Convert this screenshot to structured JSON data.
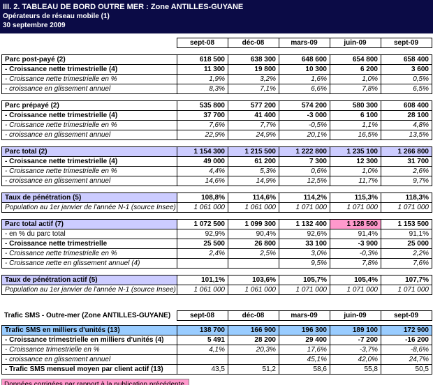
{
  "title": {
    "line1": "III. 2. TABLEAU DE BORD OUTRE MER : Zone ANTILLES-GUYANE",
    "line2": "Opérateurs de réseau mobile (1)",
    "line3": "30 septembre 2009"
  },
  "columns": [
    "sept-08",
    "déc-08",
    "mars-09",
    "juin-09",
    "sept-09"
  ],
  "sms_header_label": "Trafic SMS - Outre-mer (Zone ANTILLES-GUYANE)",
  "footer_note": "Données corrigées par rapport à la publication précédente",
  "colors": {
    "header_bg": "#0b0b46",
    "header_text": "#ffffff",
    "lavender": "#ccccff",
    "blue": "#99ccff",
    "pink": "#ff99cc",
    "border": "#000000"
  },
  "sections": [
    {
      "id": "parc-post-paye",
      "rows": [
        {
          "label": "Parc post-payé (2)",
          "style": "bold",
          "values": [
            "618 500",
            "638 300",
            "648 600",
            "654 800",
            "658 400"
          ]
        },
        {
          "label": "- Croissance nette trimestrielle (4)",
          "style": "bold",
          "values": [
            "11 300",
            "19 800",
            "10 300",
            "6 200",
            "3 600"
          ]
        },
        {
          "label": "- Croissance nette trimestrielle en %",
          "style": "italic",
          "values": [
            "1,9%",
            "3,2%",
            "1,6%",
            "1,0%",
            "0,5%"
          ]
        },
        {
          "label": "- croissance en glissement annuel",
          "style": "italic",
          "values": [
            "8,3%",
            "7,1%",
            "6,6%",
            "7,8%",
            "6,5%"
          ]
        }
      ]
    },
    {
      "id": "parc-prepaye",
      "rows": [
        {
          "label": "Parc prépayé (2)",
          "style": "bold",
          "values": [
            "535 800",
            "577 200",
            "574 200",
            "580 300",
            "608 400"
          ]
        },
        {
          "label": "- Croissance nette trimestrielle (4)",
          "style": "bold",
          "values": [
            "37 700",
            "41 400",
            "-3 000",
            "6 100",
            "28 100"
          ]
        },
        {
          "label": "- Croissance nette trimestrielle en %",
          "style": "italic",
          "values": [
            "7,6%",
            "7,7%",
            "-0,5%",
            "1,1%",
            "4,8%"
          ]
        },
        {
          "label": "- croissance en glissement annuel",
          "style": "italic",
          "values": [
            "22,9%",
            "24,9%",
            "20,1%",
            "16,5%",
            "13,5%"
          ]
        }
      ]
    },
    {
      "id": "parc-total",
      "rows": [
        {
          "label": "Parc total (2)",
          "style": "bold",
          "row_bg": "lavender",
          "values": [
            "1 154 300",
            "1 215 500",
            "1 222 800",
            "1 235 100",
            "1 266 800"
          ]
        },
        {
          "label": "- Croissance nette trimestrielle (4)",
          "style": "bold",
          "values": [
            "49 000",
            "61 200",
            "7 300",
            "12 300",
            "31 700"
          ]
        },
        {
          "label": "- Croissance nette trimestrielle en %",
          "style": "italic",
          "values": [
            "4,4%",
            "5,3%",
            "0,6%",
            "1,0%",
            "2,6%"
          ]
        },
        {
          "label": "- croissance en glissement annuel",
          "style": "italic",
          "values": [
            "14,6%",
            "14,9%",
            "12,5%",
            "11,7%",
            "9,7%"
          ]
        }
      ]
    },
    {
      "id": "taux-penetration",
      "rows": [
        {
          "label": "Taux de pénétration (5)",
          "style": "bold",
          "label_bg": "lavender",
          "values": [
            "108,8%",
            "114,6%",
            "114,2%",
            "115,3%",
            "118,3%"
          ]
        },
        {
          "label": "Population au 1er janvier de l'année N-1 (source Insee)",
          "style": "italic",
          "values": [
            "1 061 000",
            "1 061 000",
            "1 071 000",
            "1 071 000",
            "1 071 000"
          ]
        }
      ]
    },
    {
      "id": "parc-total-actif",
      "rows": [
        {
          "label": "Parc total actif (7)",
          "style": "bold",
          "label_bg": "lavender",
          "cell_bg": {
            "3": "pink"
          },
          "values": [
            "1 072 500",
            "1 099 300",
            "1 132 400",
            "1 128 500",
            "1 153 500"
          ]
        },
        {
          "label": "- en % du parc total",
          "style": "plain",
          "values": [
            "92,9%",
            "90,4%",
            "92,6%",
            "91,4%",
            "91,1%"
          ]
        },
        {
          "label": "- Croissance nette trimestrielle",
          "style": "bold",
          "values": [
            "25 500",
            "26 800",
            "33 100",
            "-3 900",
            "25 000"
          ]
        },
        {
          "label": "- Croissance nette trimestrielle en %",
          "style": "italic",
          "values": [
            "2,4%",
            "2,5%",
            "3,0%",
            "-0,3%",
            "2,2%"
          ]
        },
        {
          "label": "- Croissance nette en glissement annuel (4)",
          "style": "italic",
          "values": [
            "",
            "",
            "9,5%",
            "7,8%",
            "7,6%"
          ]
        }
      ]
    },
    {
      "id": "taux-penetration-actif",
      "rows": [
        {
          "label": "Taux de pénétration actif (5)",
          "style": "bold",
          "label_bg": "lavender",
          "values": [
            "101,1%",
            "103,6%",
            "105,7%",
            "105,4%",
            "107,7%"
          ]
        },
        {
          "label": "Population au 1er janvier de l'année N-1 (source Insee)",
          "style": "italic",
          "values": [
            "1 061 000",
            "1 061 000",
            "1 071 000",
            "1 071 000",
            "1 071 000"
          ]
        }
      ]
    },
    {
      "id": "trafic-sms",
      "sms": true,
      "rows": [
        {
          "label": "Trafic SMS en milliers d'unités (13)",
          "style": "bold",
          "row_bg": "blue",
          "values": [
            "138 700",
            "166 900",
            "196 300",
            "189 100",
            "172 900"
          ]
        },
        {
          "label": "- Croissance trimestrielle en milliers d'unités (4)",
          "style": "bold",
          "values": [
            "5 491",
            "28 200",
            "29 400",
            "-7 200",
            "-16 200"
          ]
        },
        {
          "label": "- Croissance trimestrielle en %",
          "style": "italic",
          "values": [
            "4,1%",
            "20,3%",
            "17,6%",
            "-3,7%",
            "-8,6%"
          ]
        },
        {
          "label": "- croissance en glissement annuel",
          "style": "italic",
          "values": [
            "",
            "",
            "45,1%",
            "42,0%",
            "24,7%"
          ]
        },
        {
          "label": "- Trafic SMS mensuel moyen par client actif (13)",
          "style": "bold-label",
          "values": [
            "43,5",
            "51,2",
            "58,6",
            "55,8",
            "50,5"
          ]
        }
      ]
    }
  ]
}
